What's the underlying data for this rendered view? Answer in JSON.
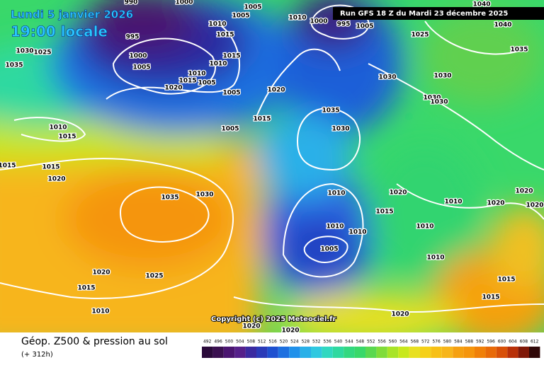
{
  "header": {
    "date": "Lundi 5 janvier 2026",
    "time": "19:00 locale",
    "run": "Run GFS 18 Z du Mardi 23 décembre 2025",
    "copyright": "Copyright (c) 2025 Meteociel.fr"
  },
  "isobar_labels": [
    "990",
    "1000",
    "1005",
    "1005",
    "1010",
    "1000",
    "995",
    "1005",
    "1025",
    "1040",
    "1040",
    "1035",
    "995",
    "1000",
    "1005",
    "1010",
    "1015",
    "1015",
    "1010",
    "1010",
    "1015",
    "1005",
    "1020",
    "1005",
    "1020",
    "1030",
    "1030",
    "1030",
    "1030",
    "1035",
    "1030",
    "1015",
    "1005",
    "1030",
    "1025",
    "1035",
    "1010",
    "1015",
    "1015",
    "1015",
    "1020",
    "1035",
    "1030",
    "1010",
    "1020",
    "1015",
    "1010",
    "1020",
    "1020",
    "1020",
    "1010",
    "1010",
    "1010",
    "1005",
    "1010",
    "1020",
    "1025",
    "1015",
    "1015",
    "1015",
    "1010",
    "1020",
    "1020",
    "1020"
  ],
  "footer": {
    "title": "Géop. Z500 & pression au sol",
    "lead_time": "(+ 312h)"
  },
  "colorbar": {
    "labels": [
      "492",
      "496",
      "500",
      "504",
      "508",
      "512",
      "516",
      "520",
      "524",
      "528",
      "532",
      "536",
      "540",
      "544",
      "548",
      "552",
      "556",
      "560",
      "564",
      "568",
      "572",
      "576",
      "580",
      "584",
      "588",
      "592",
      "596",
      "600",
      "604",
      "608",
      "612"
    ]
  }
}
